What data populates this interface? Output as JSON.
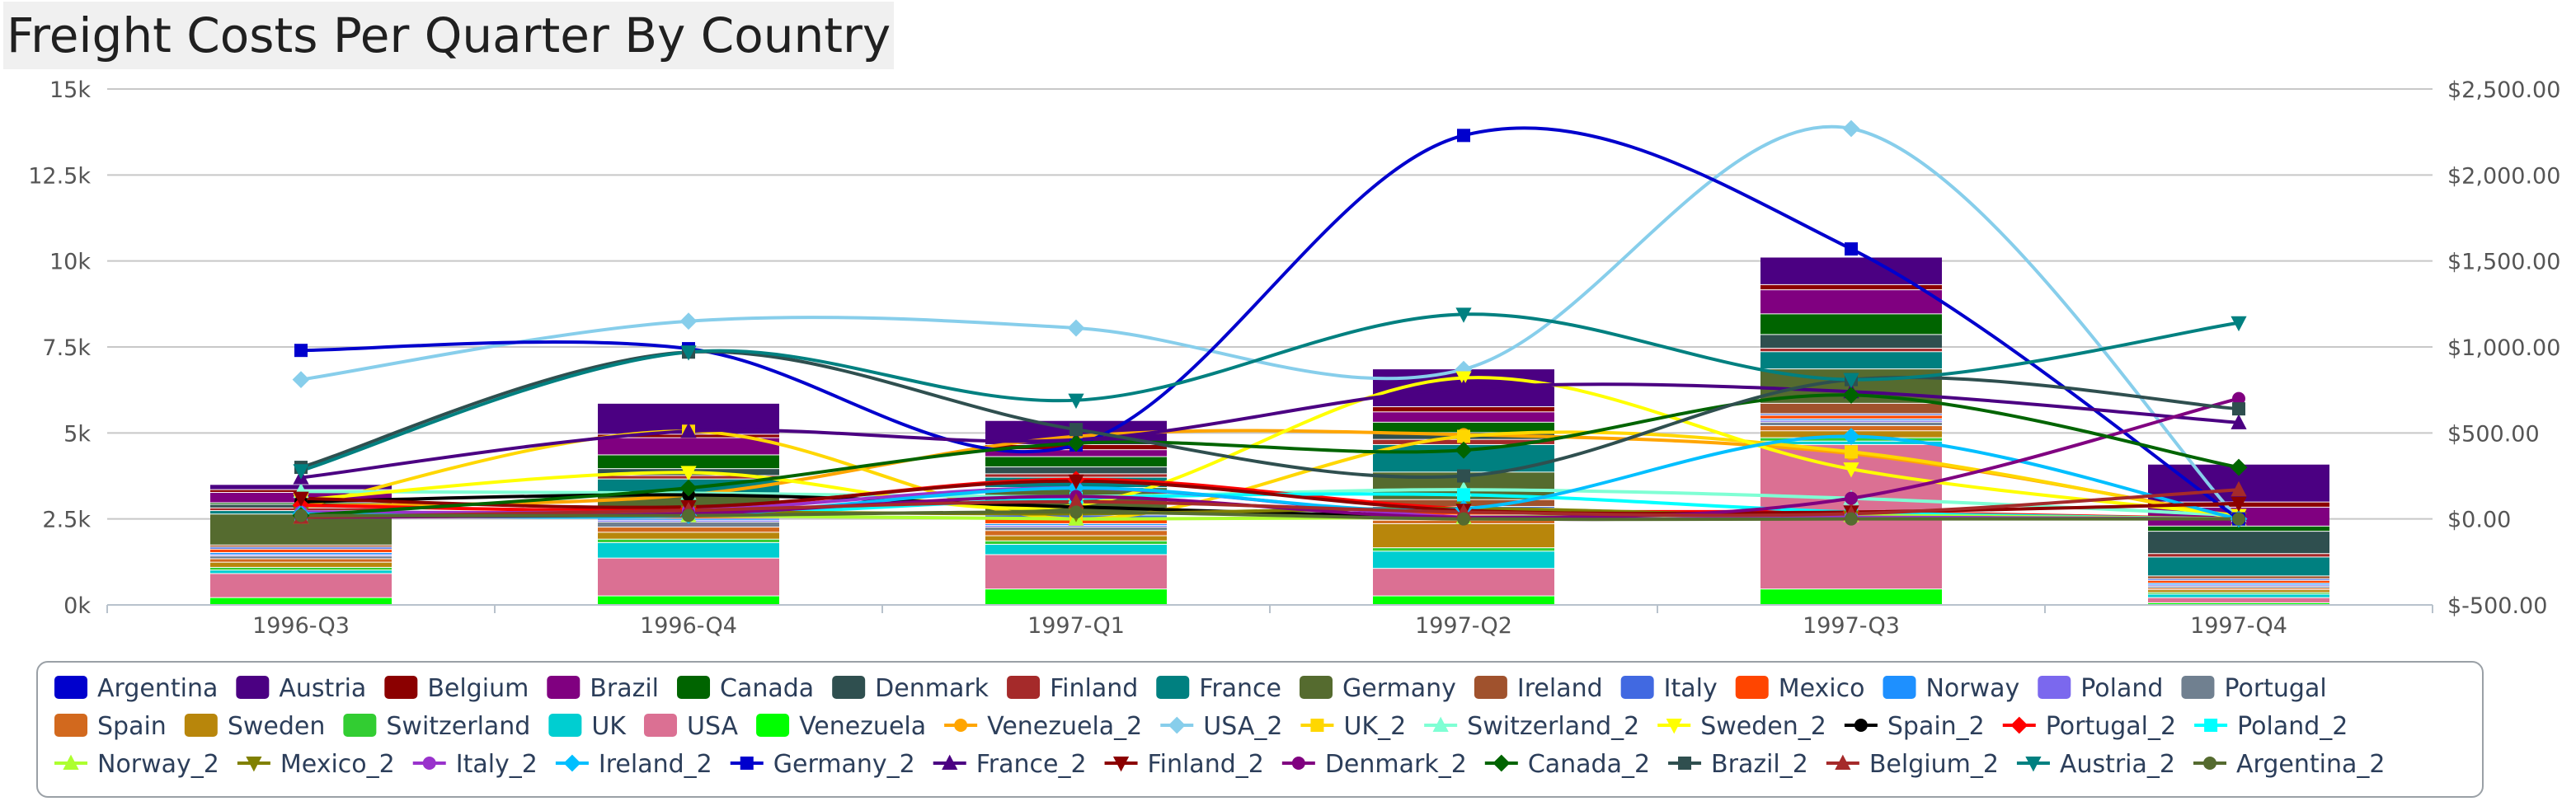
{
  "chart_data": {
    "type": "bar",
    "title": "Freight Costs Per Quarter By Country",
    "categories": [
      "1996-Q3",
      "1996-Q4",
      "1997-Q1",
      "1997-Q2",
      "1997-Q3",
      "1997-Q4"
    ],
    "left_axis": {
      "ticks": [
        "0k",
        "2.5k",
        "5k",
        "7.5k",
        "10k",
        "12.5k",
        "15k"
      ],
      "ylim": [
        0,
        15000
      ]
    },
    "right_axis": {
      "ticks": [
        "$-500.00",
        "$0.00",
        "$500.00",
        "$1,000.00",
        "$1,500.00",
        "$2,000.00",
        "$2,500.00"
      ],
      "ylim": [
        -500,
        2500
      ]
    },
    "grid": true,
    "legend_position": "bottom",
    "bar_series": [
      {
        "name": "Argentina",
        "color": "#0000cd",
        "values": [
          0,
          0,
          0,
          0,
          0,
          0
        ]
      },
      {
        "name": "Austria",
        "color": "#4b0082",
        "values": [
          150,
          900,
          700,
          1100,
          800,
          1100
        ]
      },
      {
        "name": "Belgium",
        "color": "#8b0000",
        "values": [
          80,
          100,
          150,
          150,
          150,
          150
        ]
      },
      {
        "name": "Brazil",
        "color": "#800080",
        "values": [
          300,
          500,
          200,
          300,
          700,
          550
        ]
      },
      {
        "name": "Canada",
        "color": "#006400",
        "values": [
          50,
          400,
          300,
          300,
          600,
          150
        ]
      },
      {
        "name": "Denmark",
        "color": "#2f4f4f",
        "values": [
          100,
          200,
          200,
          200,
          400,
          650
        ]
      },
      {
        "name": "Finland",
        "color": "#a52a2a",
        "values": [
          80,
          100,
          100,
          150,
          100,
          100
        ]
      },
      {
        "name": "France",
        "color": "#008080",
        "values": [
          100,
          400,
          300,
          800,
          500,
          550
        ]
      },
      {
        "name": "Germany",
        "color": "#556b2f",
        "values": [
          900,
          500,
          700,
          800,
          1000,
          0
        ]
      },
      {
        "name": "Ireland",
        "color": "#a0522d",
        "values": [
          60,
          100,
          100,
          200,
          300,
          80
        ]
      },
      {
        "name": "Italy",
        "color": "#4169e1",
        "values": [
          60,
          50,
          100,
          50,
          50,
          50
        ]
      },
      {
        "name": "Mexico",
        "color": "#ff4500",
        "values": [
          100,
          100,
          150,
          200,
          100,
          80
        ]
      },
      {
        "name": "Norway",
        "color": "#1e90ff",
        "values": [
          60,
          50,
          50,
          50,
          50,
          50
        ]
      },
      {
        "name": "Poland",
        "color": "#7b68ee",
        "values": [
          40,
          50,
          50,
          50,
          50,
          40
        ]
      },
      {
        "name": "Portugal",
        "color": "#708090",
        "values": [
          80,
          150,
          100,
          50,
          100,
          50
        ]
      },
      {
        "name": "Spain",
        "color": "#d2691e",
        "values": [
          100,
          150,
          150,
          100,
          150,
          50
        ]
      },
      {
        "name": "Sweden",
        "color": "#b8860b",
        "values": [
          150,
          200,
          150,
          700,
          200,
          80
        ]
      },
      {
        "name": "Switzerland",
        "color": "#32cd32",
        "values": [
          80,
          100,
          100,
          100,
          100,
          50
        ]
      },
      {
        "name": "UK",
        "color": "#00ced1",
        "values": [
          100,
          450,
          300,
          500,
          100,
          100
        ]
      },
      {
        "name": "USA",
        "color": "#db7093",
        "values": [
          700,
          1100,
          1000,
          800,
          4200,
          150
        ]
      },
      {
        "name": "Venezuela",
        "color": "#00ff00",
        "values": [
          200,
          250,
          450,
          250,
          450,
          50
        ]
      }
    ],
    "line_series": [
      {
        "name": "Venezuela_2",
        "color": "#ffa500",
        "marker": "circle",
        "values": [
          75,
          140,
          480,
          490,
          380,
          10
        ]
      },
      {
        "name": "USA_2",
        "color": "#87ceeb",
        "marker": "diamond",
        "values": [
          810,
          1150,
          1110,
          870,
          2270,
          0
        ]
      },
      {
        "name": "UK_2",
        "color": "#ffd700",
        "marker": "square",
        "values": [
          70,
          510,
          0,
          480,
          390,
          0
        ]
      },
      {
        "name": "Switzerland_2",
        "color": "#7fffd4",
        "marker": "triangle-up",
        "values": [
          160,
          150,
          130,
          170,
          120,
          20
        ]
      },
      {
        "name": "Sweden_2",
        "color": "#ffff00",
        "marker": "triangle-down",
        "values": [
          110,
          270,
          80,
          820,
          290,
          20
        ]
      },
      {
        "name": "Spain_2",
        "color": "#000000",
        "marker": "circle",
        "values": [
          100,
          140,
          70,
          10,
          10,
          0
        ]
      },
      {
        "name": "Portugal_2",
        "color": "#ff0000",
        "marker": "diamond",
        "values": [
          80,
          60,
          230,
          60,
          40,
          0
        ]
      },
      {
        "name": "Poland_2",
        "color": "#00ffff",
        "marker": "square",
        "values": [
          20,
          20,
          120,
          140,
          40,
          0
        ]
      },
      {
        "name": "Norway_2",
        "color": "#adff2f",
        "marker": "triangle-up",
        "values": [
          10,
          20,
          0,
          10,
          20,
          0
        ]
      },
      {
        "name": "Mexico_2",
        "color": "#808000",
        "marker": "triangle-down",
        "values": [
          30,
          40,
          30,
          60,
          10,
          0
        ]
      },
      {
        "name": "Italy_2",
        "color": "#9932cc",
        "marker": "circle",
        "values": [
          40,
          50,
          180,
          10,
          10,
          0
        ]
      },
      {
        "name": "Ireland_2",
        "color": "#00bfff",
        "marker": "diamond",
        "values": [
          30,
          20,
          180,
          60,
          480,
          0
        ]
      },
      {
        "name": "Germany_2",
        "color": "#0000cd",
        "marker": "square",
        "values": [
          980,
          990,
          430,
          2230,
          1570,
          0
        ]
      },
      {
        "name": "France_2",
        "color": "#4b0082",
        "marker": "triangle-up",
        "values": [
          240,
          510,
          460,
          760,
          740,
          560
        ]
      },
      {
        "name": "Finland_2",
        "color": "#8b0000",
        "marker": "triangle-down",
        "values": [
          120,
          70,
          220,
          50,
          40,
          90
        ]
      },
      {
        "name": "Denmark_2",
        "color": "#800080",
        "marker": "circle",
        "values": [
          10,
          30,
          130,
          10,
          120,
          700
        ]
      },
      {
        "name": "Canada_2",
        "color": "#006400",
        "marker": "diamond",
        "values": [
          20,
          180,
          440,
          400,
          720,
          300
        ]
      },
      {
        "name": "Brazil_2",
        "color": "#2f4f4f",
        "marker": "square",
        "values": [
          300,
          970,
          520,
          250,
          810,
          640
        ]
      },
      {
        "name": "Belgium_2",
        "color": "#a52a2a",
        "marker": "triangle-up",
        "values": [
          10,
          50,
          100,
          40,
          30,
          170
        ]
      },
      {
        "name": "Austria_2",
        "color": "#008080",
        "marker": "triangle-down",
        "values": [
          280,
          970,
          690,
          1190,
          810,
          1140
        ]
      },
      {
        "name": "Argentina_2",
        "color": "#556b2f",
        "marker": "circle",
        "values": [
          20,
          20,
          40,
          0,
          0,
          0
        ]
      }
    ]
  }
}
